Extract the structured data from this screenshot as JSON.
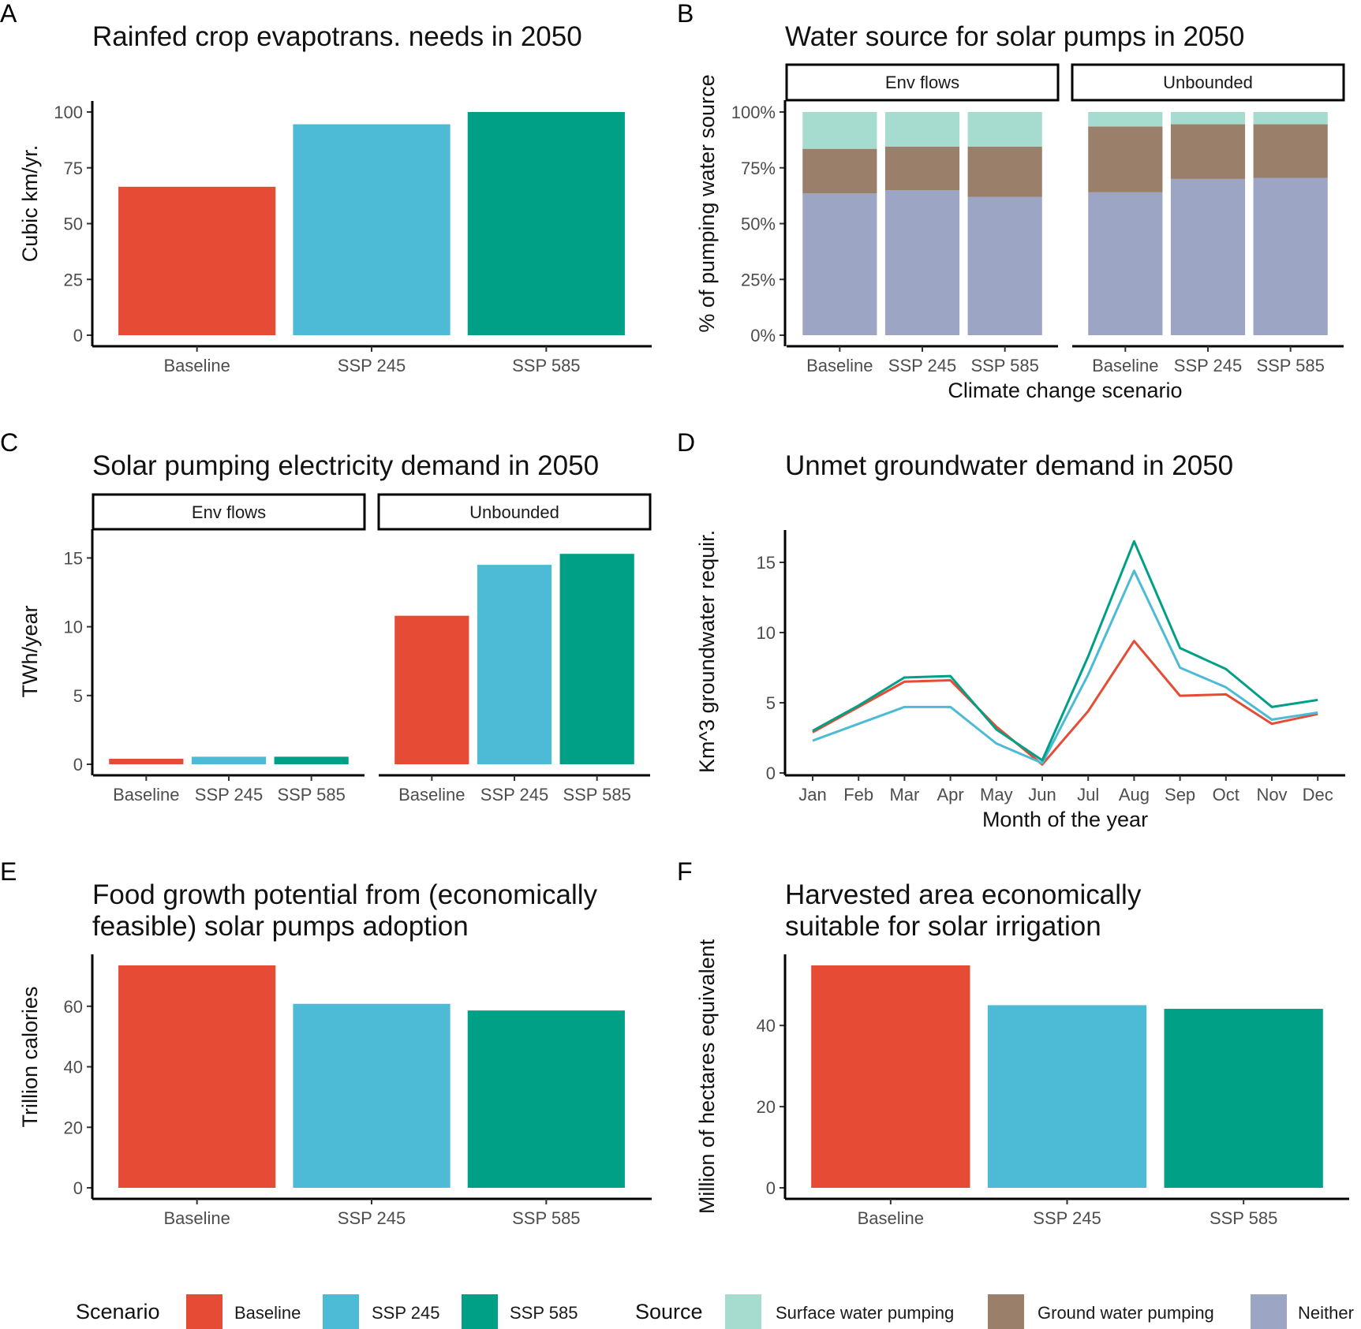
{
  "colors": {
    "Baseline": "#e64b35",
    "SSP 245": "#4dbbd5",
    "SSP 585": "#00a087",
    "Surface water pumping": "#a6dbcf",
    "Ground water pumping": "#9a7f6a",
    "Neither": "#9ca5c4"
  },
  "legend": {
    "scenario_title": "Scenario",
    "scenario_items": [
      "Baseline",
      "SSP 245",
      "SSP 585"
    ],
    "source_title": "Source",
    "source_items": [
      "Surface water pumping",
      "Ground water pumping",
      "Neither"
    ]
  },
  "chart_data": [
    {
      "id": "A",
      "type": "bar",
      "letter": "A",
      "title": [
        "Rainfed crop evapotrans. needs in 2050"
      ],
      "categories": [
        "Baseline",
        "SSP 245",
        "SSP 585"
      ],
      "values": [
        66.5,
        94.5,
        100
      ],
      "xlabel": "",
      "ylabel": "Cubic km/yr.",
      "ylim": [
        0,
        100
      ],
      "yticks": [
        0,
        25,
        50,
        75,
        100
      ],
      "ytick_labels": [
        "0",
        "25",
        "50",
        "75",
        "100"
      ],
      "grid": false
    },
    {
      "id": "B",
      "type": "bar",
      "stacked": true,
      "letter": "B",
      "title": [
        "Water source for solar pumps in 2050"
      ],
      "facets": [
        "Env flows",
        "Unbounded"
      ],
      "categories": [
        "Baseline",
        "SSP 245",
        "SSP 585"
      ],
      "stack_order": [
        "Neither",
        "Ground water pumping",
        "Surface water pumping"
      ],
      "series": [
        {
          "facet": "Env flows",
          "name": "Neither",
          "values": [
            63.5,
            65,
            62
          ]
        },
        {
          "facet": "Env flows",
          "name": "Ground water pumping",
          "values": [
            20,
            19.5,
            22.5
          ]
        },
        {
          "facet": "Env flows",
          "name": "Surface water pumping",
          "values": [
            16.5,
            15.5,
            15.5
          ]
        },
        {
          "facet": "Unbounded",
          "name": "Neither",
          "values": [
            64,
            70,
            70.5
          ]
        },
        {
          "facet": "Unbounded",
          "name": "Ground water pumping",
          "values": [
            29.5,
            24.5,
            24
          ]
        },
        {
          "facet": "Unbounded",
          "name": "Surface water pumping",
          "values": [
            6.5,
            5.5,
            5.5
          ]
        }
      ],
      "xlabel": "Climate change scenario",
      "ylabel": "% of pumping water source",
      "ylim": [
        0,
        100
      ],
      "yticks": [
        0,
        25,
        50,
        75,
        100
      ],
      "ytick_labels": [
        "0%",
        "25%",
        "50%",
        "75%",
        "100%"
      ],
      "grid": false
    },
    {
      "id": "C",
      "type": "bar",
      "letter": "C",
      "title": [
        "Solar pumping electricity demand in 2050"
      ],
      "facets": [
        "Env flows",
        "Unbounded"
      ],
      "categories": [
        "Baseline",
        "SSP 245",
        "SSP 585"
      ],
      "series": [
        {
          "facet": "Env flows",
          "values": [
            0.4,
            0.55,
            0.55
          ]
        },
        {
          "facet": "Unbounded",
          "values": [
            10.8,
            14.5,
            15.3
          ]
        }
      ],
      "xlabel": "",
      "ylabel": "TWh/year",
      "ylim": [
        0,
        16
      ],
      "yticks": [
        0,
        5,
        10,
        15
      ],
      "ytick_labels": [
        "0",
        "5",
        "10",
        "15"
      ],
      "grid": false
    },
    {
      "id": "D",
      "type": "line",
      "letter": "D",
      "title": [
        "Unmet groundwater demand  in 2050"
      ],
      "x": [
        "Jan",
        "Feb",
        "Mar",
        "Apr",
        "May",
        "Jun",
        "Jul",
        "Aug",
        "Sep",
        "Oct",
        "Nov",
        "Dec"
      ],
      "series": [
        {
          "name": "Baseline",
          "values": [
            2.9,
            4.7,
            6.5,
            6.6,
            3.3,
            0.6,
            4.4,
            9.4,
            5.5,
            5.6,
            3.5,
            4.2
          ]
        },
        {
          "name": "SSP 245",
          "values": [
            2.3,
            3.5,
            4.7,
            4.7,
            2.1,
            0.7,
            7.0,
            14.4,
            7.5,
            6.1,
            3.8,
            4.3
          ]
        },
        {
          "name": "SSP 585",
          "values": [
            3.0,
            4.8,
            6.8,
            6.9,
            3.1,
            0.9,
            8.3,
            16.5,
            8.9,
            7.4,
            4.7,
            5.2
          ]
        }
      ],
      "xlabel": "Month of the year",
      "ylabel": "Km^3 groundwater requir.",
      "ylim": [
        0,
        17.2
      ],
      "yticks": [
        0,
        5,
        10,
        15
      ],
      "ytick_labels": [
        "0",
        "5",
        "10",
        "15"
      ],
      "grid": false
    },
    {
      "id": "E",
      "type": "bar",
      "letter": "E",
      "title": [
        "Food growth potential from (economically",
        "feasible) solar pumps adoption"
      ],
      "categories": [
        "Baseline",
        "SSP 245",
        "SSP 585"
      ],
      "values": [
        73.5,
        60.8,
        58.6
      ],
      "xlabel": "",
      "ylabel": "Trillion calories",
      "ylim": [
        0,
        73.5
      ],
      "yticks": [
        0,
        20,
        40,
        60
      ],
      "ytick_labels": [
        "0",
        "20",
        "40",
        "60"
      ],
      "grid": false
    },
    {
      "id": "F",
      "type": "bar",
      "letter": "F",
      "title": [
        "Harvested area economically",
        "suitable for solar irrigation"
      ],
      "categories": [
        "Baseline",
        "SSP 245",
        "SSP 585"
      ],
      "values": [
        54.8,
        45,
        44.1
      ],
      "xlabel": "",
      "ylabel": "Million of hectares equivalent",
      "ylim": [
        0,
        54.8
      ],
      "yticks": [
        0,
        20,
        40
      ],
      "ytick_labels": [
        "0",
        "20",
        "40"
      ],
      "grid": false
    }
  ]
}
